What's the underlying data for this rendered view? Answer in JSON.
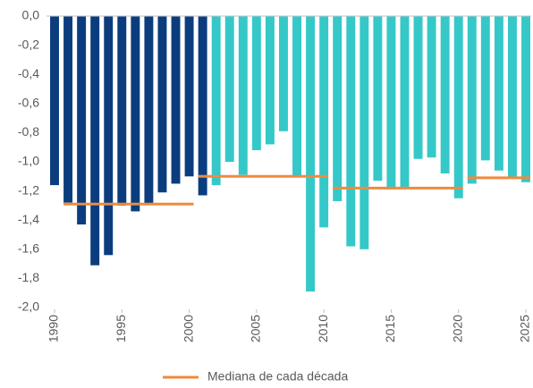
{
  "chart_data": {
    "type": "bar",
    "x": [
      1990,
      1991,
      1992,
      1993,
      1994,
      1995,
      1996,
      1997,
      1998,
      1999,
      2000,
      2001,
      2002,
      2003,
      2004,
      2005,
      2006,
      2007,
      2008,
      2009,
      2010,
      2011,
      2012,
      2013,
      2014,
      2015,
      2016,
      2017,
      2018,
      2019,
      2020,
      2021,
      2022,
      2023,
      2024,
      2025
    ],
    "values": [
      -1.16,
      -1.28,
      -1.43,
      -1.71,
      -1.64,
      -1.3,
      -1.34,
      -1.29,
      -1.21,
      -1.15,
      -1.1,
      -1.23,
      -1.16,
      -1.0,
      -1.09,
      -0.92,
      -0.88,
      -0.79,
      -1.1,
      -1.89,
      -1.45,
      -1.27,
      -1.58,
      -1.6,
      -1.13,
      -1.19,
      -1.18,
      -0.98,
      -0.97,
      -1.08,
      -1.25,
      -1.15,
      -0.99,
      -1.06,
      -1.11,
      -1.14
    ],
    "bar_colors": [
      "#0b3d7e",
      "#0b3d7e",
      "#0b3d7e",
      "#0b3d7e",
      "#0b3d7e",
      "#0b3d7e",
      "#0b3d7e",
      "#0b3d7e",
      "#0b3d7e",
      "#0b3d7e",
      "#0b3d7e",
      "#0b3d7e",
      "#35c8c8",
      "#35c8c8",
      "#35c8c8",
      "#35c8c8",
      "#35c8c8",
      "#35c8c8",
      "#35c8c8",
      "#35c8c8",
      "#35c8c8",
      "#35c8c8",
      "#35c8c8",
      "#35c8c8",
      "#35c8c8",
      "#35c8c8",
      "#35c8c8",
      "#35c8c8",
      "#35c8c8",
      "#35c8c8",
      "#35c8c8",
      "#35c8c8",
      "#35c8c8",
      "#35c8c8",
      "#35c8c8",
      "#35c8c8"
    ],
    "medians": {
      "name": "Mediana de cada década",
      "color": "#f08a3c",
      "segments": [
        {
          "x": [
            1991,
            2000
          ],
          "value": -1.29
        },
        {
          "x": [
            2001,
            2010
          ],
          "value": -1.1
        },
        {
          "x": [
            2011,
            2020
          ],
          "value": -1.18
        },
        {
          "x": [
            2021,
            2025
          ],
          "value": -1.11
        }
      ]
    },
    "xlim": [
      1990,
      2025
    ],
    "xticks": [
      1990,
      1995,
      2000,
      2005,
      2010,
      2015,
      2020,
      2025
    ],
    "ylim": [
      -2.0,
      0.0
    ],
    "yticks": [
      {
        "value": 0.0,
        "label": "0,0"
      },
      {
        "value": -0.2,
        "label": "-0,2"
      },
      {
        "value": -0.4,
        "label": "-0,4"
      },
      {
        "value": -0.6,
        "label": "-0,6"
      },
      {
        "value": -0.8,
        "label": "-0,8"
      },
      {
        "value": -1.0,
        "label": "-1,0"
      },
      {
        "value": -1.2,
        "label": "-1,2"
      },
      {
        "value": -1.4,
        "label": "-1,4"
      },
      {
        "value": -1.6,
        "label": "-1,6"
      },
      {
        "value": -1.8,
        "label": "-1,8"
      },
      {
        "value": -2.0,
        "label": "-2,0"
      }
    ],
    "grid": false
  }
}
